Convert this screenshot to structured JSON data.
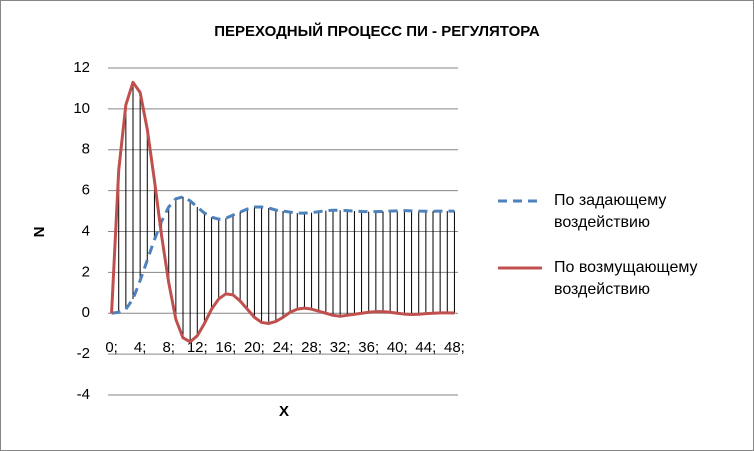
{
  "chart_data": {
    "type": "line",
    "title": "ПЕРЕХОДНЫЙ ПРОЦЕСС ПИ - РЕГУЛЯТОРА",
    "x_label": "X",
    "y_label": "N",
    "categories": [
      "0;",
      null,
      null,
      null,
      "4;",
      null,
      null,
      null,
      "8;",
      null,
      null,
      null,
      "12;",
      null,
      null,
      null,
      "16;",
      null,
      null,
      null,
      "20;",
      null,
      null,
      null,
      "24;",
      null,
      null,
      null,
      "28;",
      null,
      null,
      null,
      "32;",
      null,
      null,
      null,
      "36;",
      null,
      null,
      null,
      "40;",
      null,
      null,
      null,
      "44;",
      null,
      null,
      null,
      "48;"
    ],
    "series": [
      {
        "name": "По задающему воздействию",
        "color": "#4f81bd",
        "dash": true,
        "values": [
          0,
          0.05,
          0.2,
          0.7,
          1.6,
          2.6,
          3.6,
          4.5,
          5.2,
          5.6,
          5.7,
          5.5,
          5.2,
          4.9,
          4.7,
          4.6,
          4.65,
          4.8,
          4.95,
          5.1,
          5.2,
          5.2,
          5.15,
          5.05,
          5,
          4.95,
          4.9,
          4.9,
          4.92,
          4.97,
          5.02,
          5.04,
          5.04,
          5.02,
          5,
          4.98,
          4.97,
          4.97,
          4.98,
          5,
          5.01,
          5.02,
          5.01,
          5,
          4.99,
          4.99,
          5,
          5,
          5
        ]
      },
      {
        "name": "По возмущающему воздействию",
        "color": "#c0504d",
        "dash": false,
        "values": [
          0,
          7,
          10.2,
          11.3,
          10.8,
          9,
          6.5,
          3.8,
          1.5,
          -0.3,
          -1.2,
          -1.4,
          -1.1,
          -0.5,
          0.2,
          0.7,
          0.95,
          0.9,
          0.6,
          0.2,
          -0.2,
          -0.45,
          -0.5,
          -0.4,
          -0.2,
          0.05,
          0.2,
          0.25,
          0.2,
          0.1,
          0,
          -0.1,
          -0.15,
          -0.1,
          -0.05,
          0,
          0.05,
          0.08,
          0.08,
          0.05,
          0,
          -0.04,
          -0.06,
          -0.05,
          -0.02,
          0,
          0.02,
          0.02,
          0.01
        ]
      }
    ],
    "ylim": [
      -4,
      12
    ],
    "yticks": [
      -4,
      -2,
      0,
      2,
      4,
      6,
      8,
      10,
      12
    ],
    "grid": true,
    "hi_lo_lines": true,
    "legend": "right"
  }
}
